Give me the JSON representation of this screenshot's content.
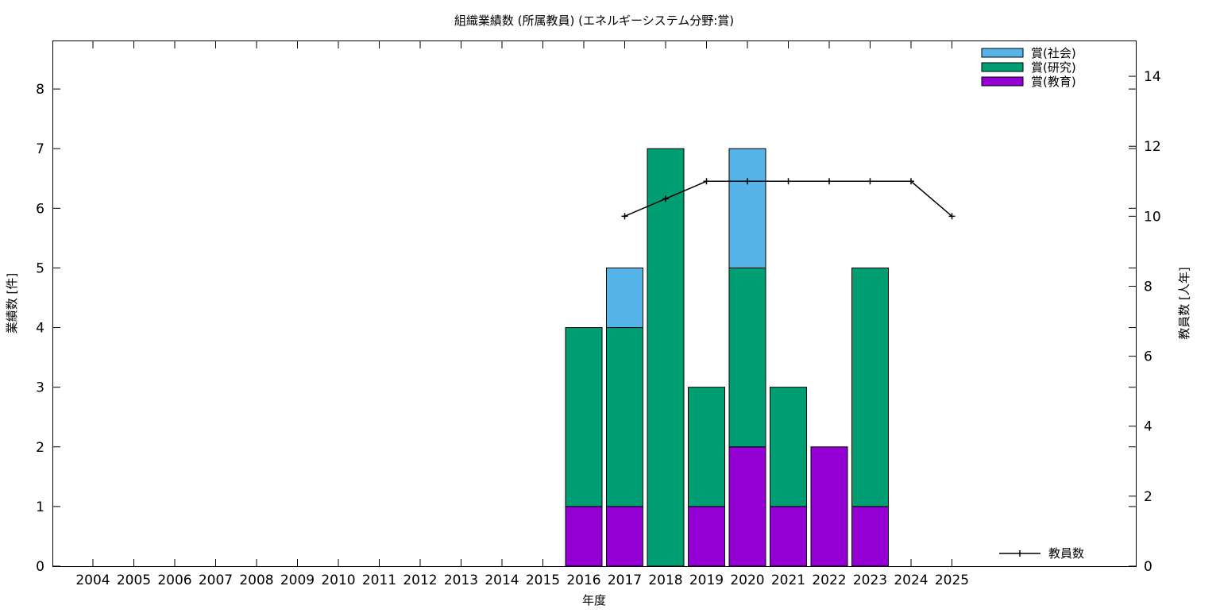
{
  "chart_data": {
    "type": "bar",
    "stacked": true,
    "title": "組織業績数 (所属教員) (エネルギーシステム分野:賞)",
    "xlabel": "年度",
    "ylabel": "業績数 [件]",
    "y2label": "教員数 [人年]",
    "categories": [
      "2004",
      "2005",
      "2006",
      "2007",
      "2008",
      "2009",
      "2010",
      "2011",
      "2012",
      "2013",
      "2014",
      "2015",
      "2016",
      "2017",
      "2018",
      "2019",
      "2020",
      "2021",
      "2022",
      "2023",
      "2024",
      "2025"
    ],
    "ylim": [
      0,
      8.8
    ],
    "y2lim": [
      0,
      15
    ],
    "yticks": [
      "0",
      "1",
      "2",
      "3",
      "4",
      "5",
      "6",
      "7",
      "8"
    ],
    "y2ticks": [
      "0",
      "2",
      "4",
      "6",
      "8",
      "10",
      "12",
      "14"
    ],
    "grid": false,
    "legend_position": "top-right",
    "series": [
      {
        "name": "賞(教育)",
        "color": "#9400d3",
        "values": [
          0,
          0,
          0,
          0,
          0,
          0,
          0,
          0,
          0,
          0,
          0,
          0,
          1,
          1,
          0,
          1,
          2,
          1,
          2,
          1,
          0,
          0
        ]
      },
      {
        "name": "賞(研究)",
        "color": "#009e73",
        "values": [
          0,
          0,
          0,
          0,
          0,
          0,
          0,
          0,
          0,
          0,
          0,
          0,
          3,
          3,
          7,
          2,
          3,
          2,
          0,
          4,
          0,
          0
        ]
      },
      {
        "name": "賞(社会)",
        "color": "#56b4e9",
        "values": [
          0,
          0,
          0,
          0,
          0,
          0,
          0,
          0,
          0,
          0,
          0,
          0,
          0,
          1,
          0,
          0,
          2,
          0,
          0,
          0,
          0,
          0
        ]
      }
    ],
    "line_series": {
      "name": "教員数",
      "color": "#000000",
      "axis": "y2",
      "x": [
        "2017",
        "2018",
        "2019",
        "2020",
        "2021",
        "2022",
        "2023",
        "2024",
        "2025"
      ],
      "values": [
        10,
        10.5,
        11,
        11,
        11,
        11,
        11,
        11,
        10
      ]
    }
  }
}
